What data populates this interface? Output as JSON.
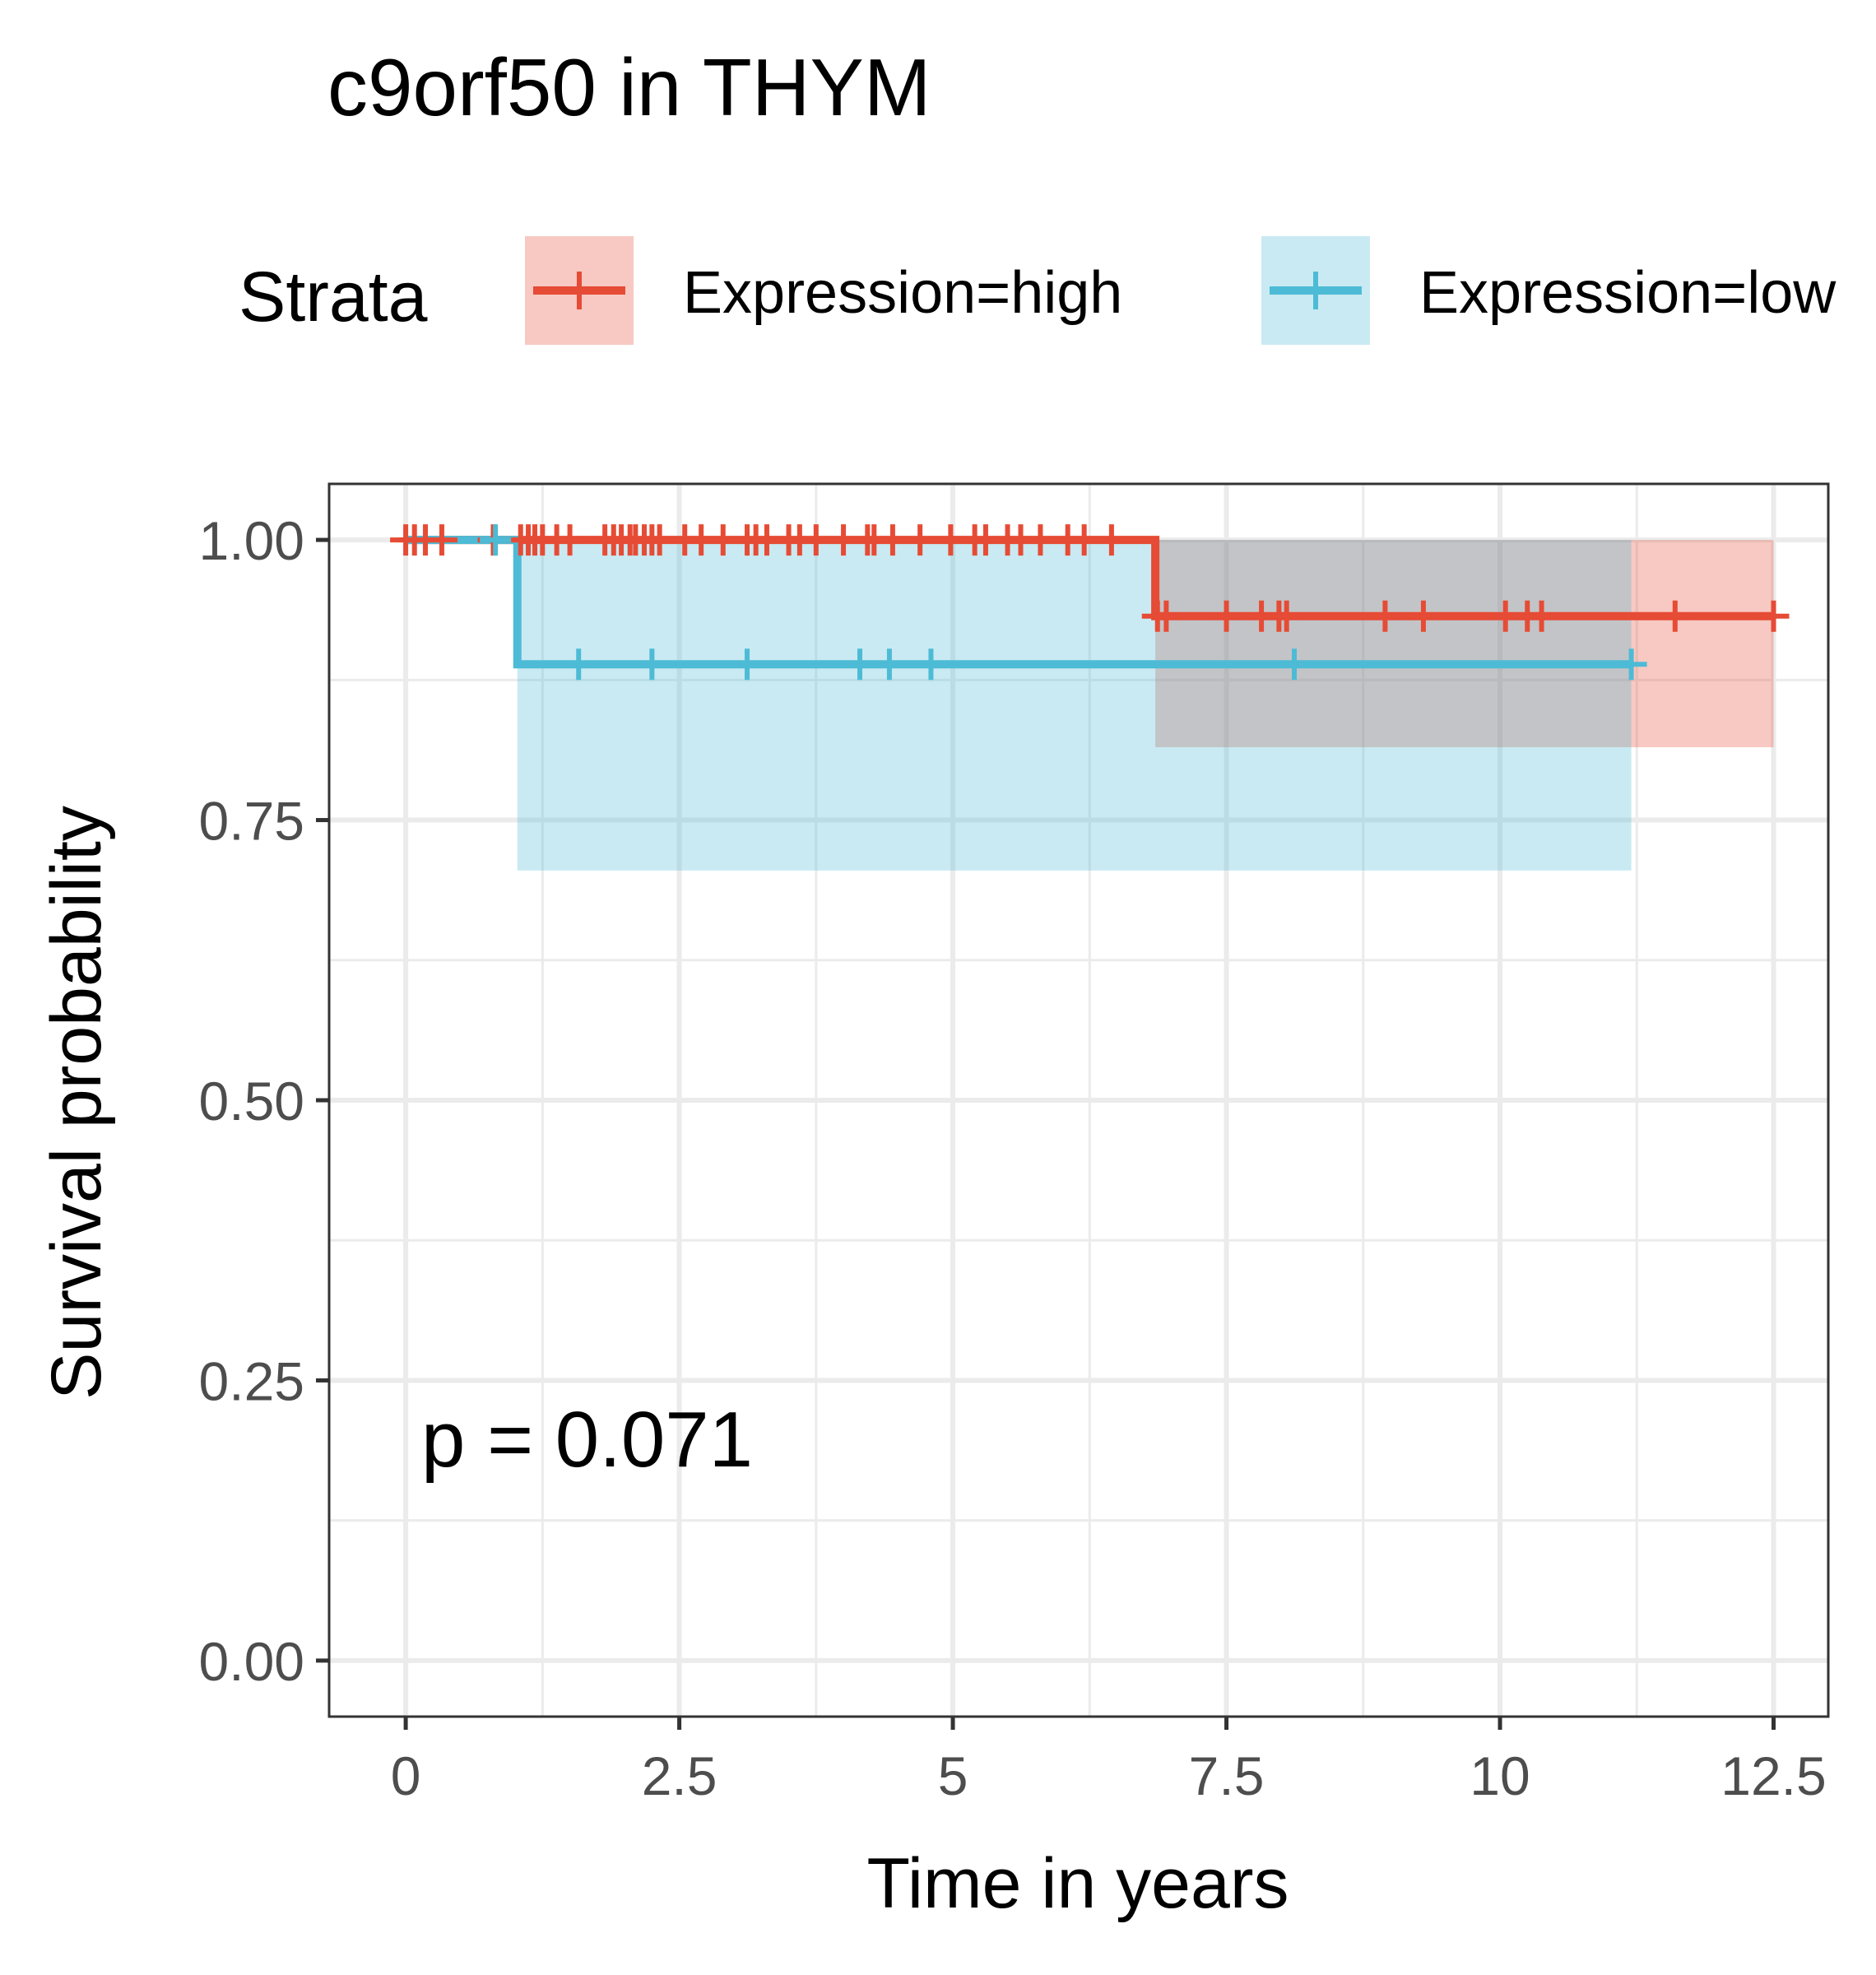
{
  "chart_data": {
    "type": "line",
    "title": "c9orf50 in THYM",
    "xlabel": "Time in years",
    "ylabel": "Survival probability",
    "xlim": [
      -0.7,
      13.0
    ],
    "ylim": [
      -0.05,
      1.05
    ],
    "x_ticks": [
      0,
      2.5,
      5,
      7.5,
      10,
      12.5
    ],
    "x_tick_labels": [
      "0",
      "2.5",
      "5",
      "7.5",
      "10",
      "12.5"
    ],
    "y_ticks": [
      0,
      0.25,
      0.5,
      0.75,
      1.0
    ],
    "y_tick_labels": [
      "0.00",
      "0.25",
      "0.50",
      "0.75",
      "1.00"
    ],
    "grid": true,
    "legend": {
      "title": "Strata",
      "position": "top",
      "entries": [
        "Expression=high",
        "Expression=low"
      ]
    },
    "annotation": "p = 0.071",
    "series": [
      {
        "name": "Expression=high",
        "color": "#E64B35",
        "steps": [
          [
            0,
            1.0
          ],
          [
            6.85,
            0.932
          ],
          [
            12.5,
            0.932
          ]
        ],
        "ci": [
          {
            "x0": 0,
            "x1": 6.85,
            "lower": 1.0,
            "upper": 1.0
          },
          {
            "x0": 6.85,
            "x1": 12.5,
            "lower": 0.815,
            "upper": 1.0
          }
        ],
        "censor_x": [
          0.0,
          0.08,
          0.18,
          0.33,
          0.8,
          1.05,
          1.12,
          1.18,
          1.25,
          1.38,
          1.5,
          1.82,
          1.9,
          1.97,
          2.05,
          2.1,
          2.18,
          2.25,
          2.32,
          2.55,
          2.7,
          2.9,
          3.12,
          3.2,
          3.3,
          3.5,
          3.6,
          3.75,
          4.0,
          4.22,
          4.28,
          4.45,
          4.7,
          4.98,
          5.2,
          5.3,
          5.5,
          5.62,
          5.8,
          6.05,
          6.2,
          6.45,
          6.87,
          6.95,
          7.5,
          7.82,
          7.98,
          8.05,
          8.95,
          9.3,
          10.05,
          10.25,
          10.38,
          11.6,
          12.5
        ]
      },
      {
        "name": "Expression=low",
        "color": "#4DBBD5",
        "steps": [
          [
            0,
            1.0
          ],
          [
            1.02,
            0.889
          ],
          [
            11.2,
            0.889
          ]
        ],
        "ci": [
          {
            "x0": 0,
            "x1": 1.02,
            "lower": 1.0,
            "upper": 1.0
          },
          {
            "x0": 1.02,
            "x1": 11.2,
            "lower": 0.705,
            "upper": 1.0
          }
        ],
        "censor_x": [
          0.82,
          1.58,
          2.25,
          3.12,
          4.15,
          4.42,
          4.8,
          8.12,
          11.2
        ]
      }
    ]
  }
}
